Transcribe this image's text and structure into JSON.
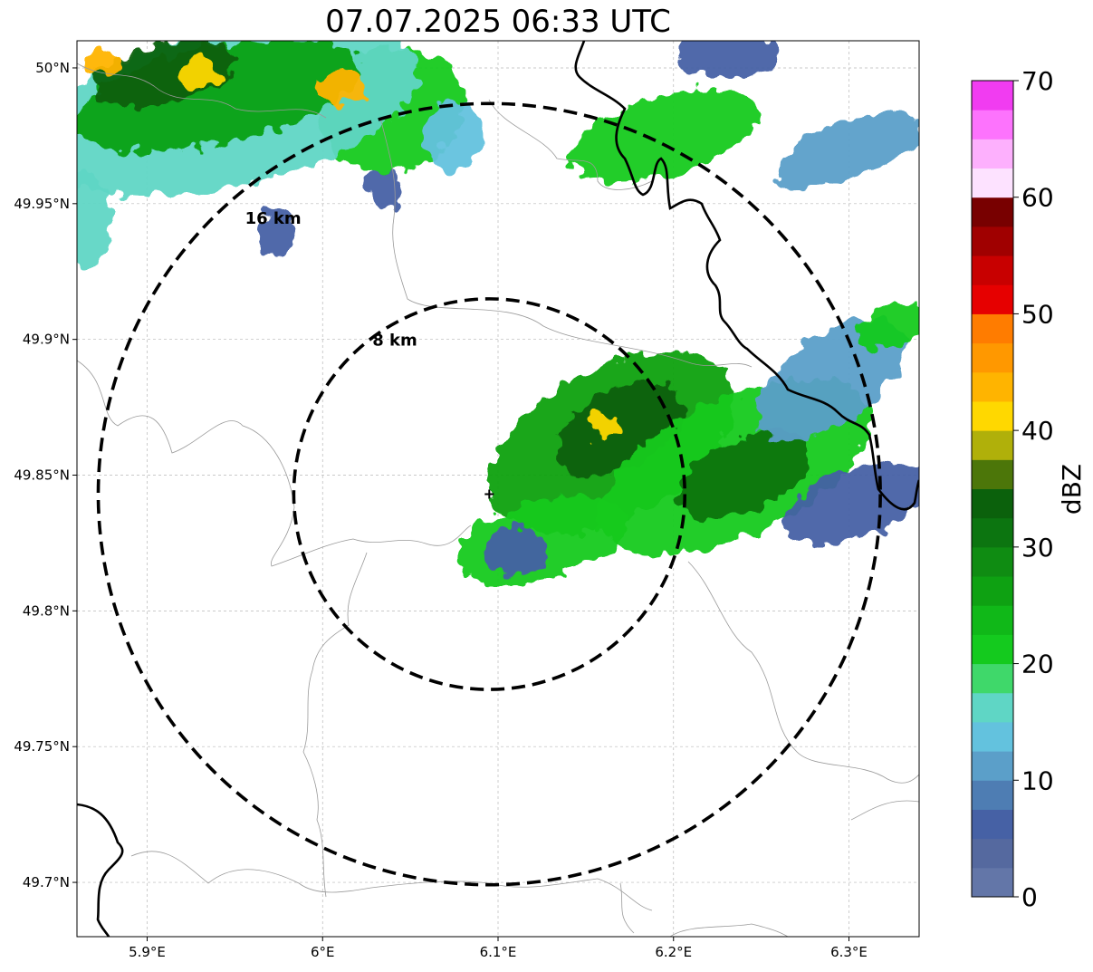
{
  "title": "07.07.2025 06:33 UTC",
  "map": {
    "lon_range": [
      5.86,
      6.34
    ],
    "lat_range": [
      49.68,
      50.01
    ],
    "lon_ticks": [
      5.9,
      6.0,
      6.1,
      6.2,
      6.3
    ],
    "lon_tick_labels": [
      "5.9°E",
      "6°E",
      "6.1°E",
      "6.2°E",
      "6.3°E"
    ],
    "lat_ticks": [
      49.7,
      49.75,
      49.8,
      49.85,
      49.9,
      49.95,
      50.0
    ],
    "lat_tick_labels": [
      "49.7°N",
      "49.75°N",
      "49.8°N",
      "49.85°N",
      "49.9°N",
      "49.95°N",
      "50°N"
    ],
    "grid": true,
    "radar_site": {
      "lon": 6.095,
      "lat": 49.843,
      "marker": "plus-icon"
    },
    "range_rings": [
      {
        "radius_km": 8,
        "label": "8 km"
      },
      {
        "radius_km": 16,
        "label": "16 km"
      }
    ],
    "colorbar": {
      "label": "dBZ",
      "min": 0,
      "max": 70,
      "tick_values": [
        0,
        10,
        20,
        30,
        40,
        50,
        60,
        70
      ],
      "tick_labels": [
        "0",
        "10",
        "20",
        "30",
        "40",
        "50",
        "60",
        "70"
      ],
      "colors": [
        "#6376a8",
        "#55699f",
        "#4661a5",
        "#4e7db3",
        "#5b9fc9",
        "#63c2de",
        "#5fd6c5",
        "#3fd86a",
        "#14ca1e",
        "#10b818",
        "#0ea112",
        "#0f8c12",
        "#0c7510",
        "#0b610c",
        "#4c7609",
        "#b0b00a",
        "#ffd800",
        "#ffb400",
        "#ff9800",
        "#ff7c00",
        "#e60000",
        "#c80000",
        "#a00000",
        "#780000",
        "#fde2ff",
        "#fdb0fd",
        "#fd73fd",
        "#f13cf1"
      ]
    },
    "echoes": [
      {
        "lon": 6.165,
        "lat": 49.862,
        "rx_km": 5.5,
        "ry_km": 3.0,
        "rot": -28,
        "dbz": 25
      },
      {
        "lon": 6.17,
        "lat": 49.867,
        "rx_km": 2.8,
        "ry_km": 1.6,
        "rot": -28,
        "dbz": 33
      },
      {
        "lon": 6.16,
        "lat": 49.868,
        "rx_km": 0.6,
        "ry_km": 0.5,
        "rot": 0,
        "dbz": 42
      },
      {
        "lon": 6.235,
        "lat": 49.853,
        "rx_km": 6.0,
        "ry_km": 2.8,
        "rot": -25,
        "dbz": 20
      },
      {
        "lon": 6.24,
        "lat": 49.85,
        "rx_km": 3.0,
        "ry_km": 1.5,
        "rot": -25,
        "dbz": 30
      },
      {
        "lon": 6.125,
        "lat": 49.826,
        "rx_km": 3.6,
        "ry_km": 1.6,
        "rot": -15,
        "dbz": 20
      },
      {
        "lon": 6.11,
        "lat": 49.822,
        "rx_km": 1.3,
        "ry_km": 1.0,
        "rot": 0,
        "dbz": 6
      },
      {
        "lon": 6.29,
        "lat": 49.885,
        "rx_km": 3.5,
        "ry_km": 1.8,
        "rot": -35,
        "dbz": 12
      },
      {
        "lon": 6.305,
        "lat": 49.84,
        "rx_km": 3.2,
        "ry_km": 1.4,
        "rot": -20,
        "dbz": 6
      },
      {
        "lon": 6.325,
        "lat": 49.905,
        "rx_km": 1.5,
        "ry_km": 0.8,
        "rot": -20,
        "dbz": 22
      },
      {
        "lon": 6.195,
        "lat": 49.975,
        "rx_km": 4.0,
        "ry_km": 1.6,
        "rot": -15,
        "dbz": 22
      },
      {
        "lon": 6.3,
        "lat": 49.97,
        "rx_km": 3.2,
        "ry_km": 1.2,
        "rot": -20,
        "dbz": 12
      },
      {
        "lon": 6.23,
        "lat": 50.005,
        "rx_km": 2.0,
        "ry_km": 1.0,
        "rot": 0,
        "dbz": 6
      },
      {
        "lon": 6.04,
        "lat": 49.985,
        "rx_km": 3.0,
        "ry_km": 2.5,
        "rot": -20,
        "dbz": 22
      },
      {
        "lon": 6.035,
        "lat": 49.955,
        "rx_km": 0.8,
        "ry_km": 0.8,
        "rot": 0,
        "dbz": 6
      },
      {
        "lon": 5.975,
        "lat": 49.94,
        "rx_km": 0.8,
        "ry_km": 1.0,
        "rot": 0,
        "dbz": 6
      },
      {
        "lon": 5.945,
        "lat": 49.985,
        "rx_km": 8.0,
        "ry_km": 3.2,
        "rot": -12,
        "dbz": 15
      },
      {
        "lon": 5.94,
        "lat": 49.99,
        "rx_km": 6.0,
        "ry_km": 2.0,
        "rot": -12,
        "dbz": 26
      },
      {
        "lon": 5.91,
        "lat": 49.998,
        "rx_km": 3.0,
        "ry_km": 1.2,
        "rot": -12,
        "dbz": 34
      },
      {
        "lon": 6.01,
        "lat": 49.993,
        "rx_km": 1.0,
        "ry_km": 0.7,
        "rot": 0,
        "dbz": 43
      },
      {
        "lon": 5.93,
        "lat": 49.998,
        "rx_km": 0.9,
        "ry_km": 0.6,
        "rot": 0,
        "dbz": 40
      },
      {
        "lon": 5.875,
        "lat": 50.002,
        "rx_km": 0.8,
        "ry_km": 0.5,
        "rot": 0,
        "dbz": 44
      },
      {
        "lon": 5.865,
        "lat": 49.945,
        "rx_km": 1.0,
        "ry_km": 2.0,
        "rot": 0,
        "dbz": 16
      },
      {
        "lon": 6.075,
        "lat": 49.975,
        "rx_km": 1.2,
        "ry_km": 1.5,
        "rot": 0,
        "dbz": 14
      }
    ]
  }
}
